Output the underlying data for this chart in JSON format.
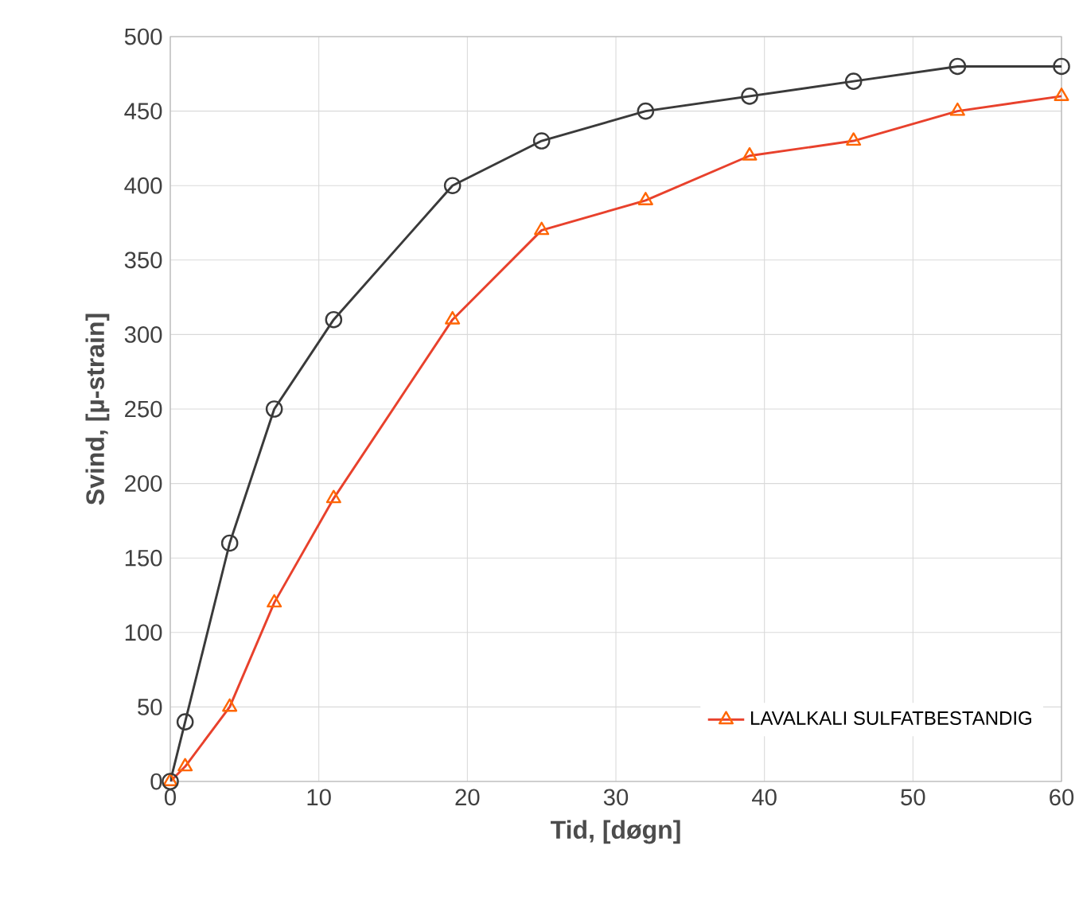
{
  "chart_data": {
    "type": "line",
    "xlabel": "Tid, [døgn]",
    "ylabel": "Svind, [µ-strain]",
    "xlim": [
      0,
      60
    ],
    "xticks": [
      0,
      10,
      20,
      30,
      40,
      50,
      60
    ],
    "ylim": [
      0,
      500
    ],
    "yticks": [
      0,
      50,
      100,
      150,
      200,
      250,
      300,
      350,
      400,
      450,
      500
    ],
    "grid": true,
    "legend": "bottom right",
    "line_style": "solid",
    "series": [
      {
        "name": "LAVALKALI SULFATBESTANDIG",
        "color": "#e8412c",
        "marker": "triangle",
        "x": [
          0,
          1,
          4,
          7,
          11,
          19,
          25,
          32,
          39,
          46,
          53,
          60
        ],
        "values": [
          0,
          10,
          50,
          120,
          190,
          310,
          370,
          390,
          420,
          430,
          450,
          460
        ]
      },
      {
        "color": "#3a3a3a",
        "marker": "circle",
        "x": [
          0,
          1,
          4,
          7,
          11,
          19,
          25,
          32,
          39,
          46,
          53,
          60
        ],
        "values": [
          0,
          40,
          160,
          250,
          310,
          400,
          430,
          450,
          460,
          470,
          480,
          480
        ]
      }
    ]
  }
}
